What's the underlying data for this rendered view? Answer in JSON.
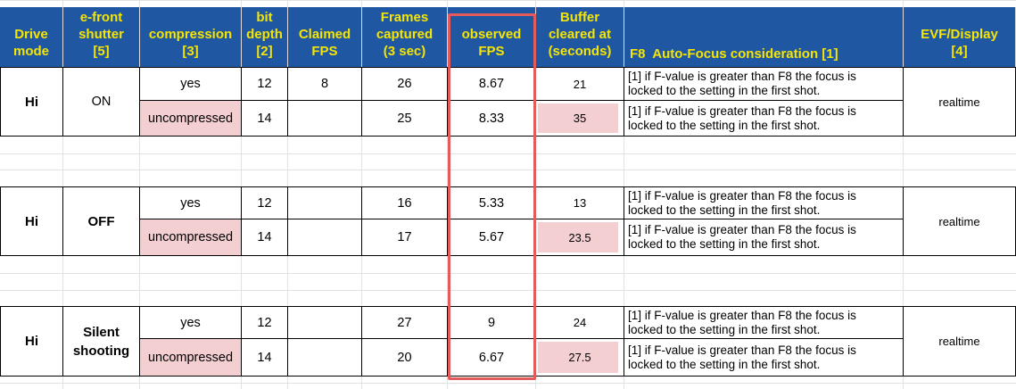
{
  "headers": {
    "drive_mode": "Drive\nmode",
    "efront": "e-front\nshutter\n[5]",
    "compression": "compression\n[3]",
    "bit_depth": "bit\ndepth\n[2]",
    "claimed_fps": "Claimed\nFPS",
    "frames_captured": "Frames\ncaptured\n(3 sec)",
    "observed_fps": "observed\nFPS",
    "buffer_cleared": "Buffer\ncleared at\n(seconds)",
    "focus": "F8  Auto-Focus consideration [1]",
    "evf": "EVF/Display\n[4]"
  },
  "note_line1": "[1] if F-value is greater than F8 the focus is",
  "note_line2": "locked to the setting in the first shot.",
  "groups": [
    {
      "drive_mode": "Hi",
      "efront": "ON",
      "evf": "realtime",
      "rows": [
        {
          "compression": "yes",
          "bit_depth": "12",
          "claimed_fps": "8",
          "frames": "26",
          "observed_fps": "8.67",
          "buffer": "21"
        },
        {
          "compression": "uncompressed",
          "bit_depth": "14",
          "claimed_fps": "",
          "frames": "25",
          "observed_fps": "8.33",
          "buffer": "35"
        }
      ]
    },
    {
      "drive_mode": "Hi",
      "efront": "OFF",
      "evf": "realtime",
      "rows": [
        {
          "compression": "yes",
          "bit_depth": "12",
          "claimed_fps": "",
          "frames": "16",
          "observed_fps": "5.33",
          "buffer": "13"
        },
        {
          "compression": "uncompressed",
          "bit_depth": "14",
          "claimed_fps": "",
          "frames": "17",
          "observed_fps": "5.67",
          "buffer": "23.5"
        }
      ]
    },
    {
      "drive_mode": "Hi",
      "efront": "Silent\nshooting",
      "evf": "realtime",
      "rows": [
        {
          "compression": "yes",
          "bit_depth": "12",
          "claimed_fps": "",
          "frames": "27",
          "observed_fps": "9",
          "buffer": "24"
        },
        {
          "compression": "uncompressed",
          "bit_depth": "14",
          "claimed_fps": "",
          "frames": "20",
          "observed_fps": "6.67",
          "buffer": "27.5"
        }
      ]
    }
  ],
  "colors": {
    "header_bg": "#1f57a3",
    "header_text": "#f6e500",
    "highlight_pink": "#f3cfd1",
    "observed_box": "#e35b5b"
  }
}
